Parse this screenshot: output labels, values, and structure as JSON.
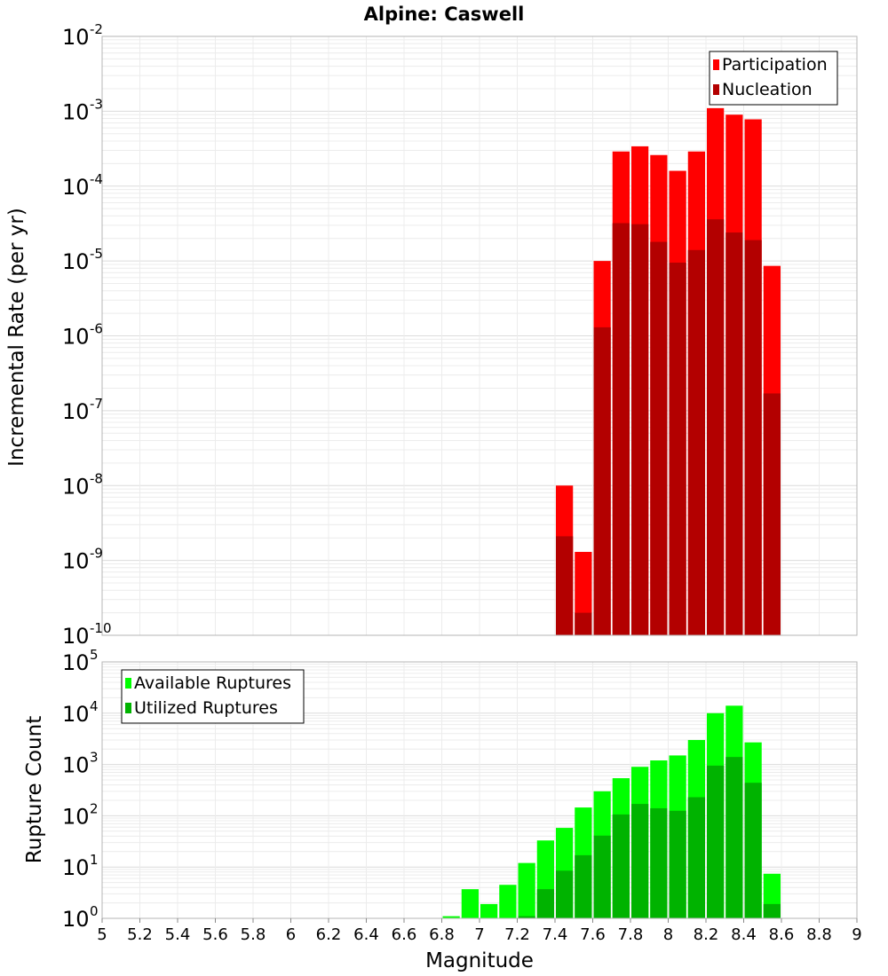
{
  "chart_data": [
    {
      "type": "bar",
      "title": "Alpine: Caswell",
      "xlabel": "",
      "ylabel": "Incremental Rate (per yr)",
      "yscale": "log",
      "ylim": [
        1e-10,
        0.01
      ],
      "xlim": [
        5,
        9
      ],
      "bin_width": 0.1,
      "legend": {
        "position": "top-right"
      },
      "x": [
        7.45,
        7.55,
        7.65,
        7.75,
        7.85,
        7.95,
        8.05,
        8.15,
        8.25,
        8.35,
        8.45,
        8.55
      ],
      "series": [
        {
          "name": "Participation",
          "color": "#ff0000",
          "values": [
            1e-08,
            1.3e-09,
            1e-05,
            0.00029,
            0.00034,
            0.00026,
            0.00016,
            0.00029,
            0.0011,
            0.0009,
            0.00078,
            8.6e-06
          ]
        },
        {
          "name": "Nucleation",
          "color": "#b30000",
          "values": [
            2.1e-09,
            2e-10,
            1.3e-06,
            3.2e-05,
            3.1e-05,
            1.8e-05,
            9.5e-06,
            1.4e-05,
            3.6e-05,
            2.4e-05,
            1.9e-05,
            1.7e-07
          ]
        }
      ]
    },
    {
      "type": "bar",
      "title": "",
      "xlabel": "Magnitude",
      "ylabel": "Rupture Count",
      "yscale": "log",
      "ylim": [
        1,
        100000.0
      ],
      "xlim": [
        5,
        9
      ],
      "bin_width": 0.1,
      "legend": {
        "position": "top-left"
      },
      "x": [
        6.85,
        6.95,
        7.05,
        7.15,
        7.25,
        7.35,
        7.45,
        7.55,
        7.65,
        7.75,
        7.85,
        7.95,
        8.05,
        8.15,
        8.25,
        8.35,
        8.45,
        8.55
      ],
      "series": [
        {
          "name": "Available Ruptures",
          "color": "#00ff00",
          "values": [
            1.1,
            3.7,
            1.9,
            4.5,
            12,
            33,
            58,
            145,
            300,
            540,
            900,
            1200,
            1500,
            3000,
            10000,
            14000,
            2700,
            7.4
          ]
        },
        {
          "name": "Utilized Ruptures",
          "color": "#00b300",
          "values": [
            null,
            null,
            null,
            null,
            1.1,
            3.7,
            8.5,
            17,
            41,
            106,
            170,
            140,
            125,
            230,
            950,
            1400,
            440,
            1.9
          ]
        }
      ],
      "xticks": [
        "5",
        "5.2",
        "5.4",
        "5.6",
        "5.8",
        "6",
        "6.2",
        "6.4",
        "6.6",
        "6.8",
        "7",
        "7.2",
        "7.4",
        "7.6",
        "7.8",
        "8",
        "8.2",
        "8.4",
        "8.6",
        "8.8",
        "9"
      ]
    }
  ]
}
